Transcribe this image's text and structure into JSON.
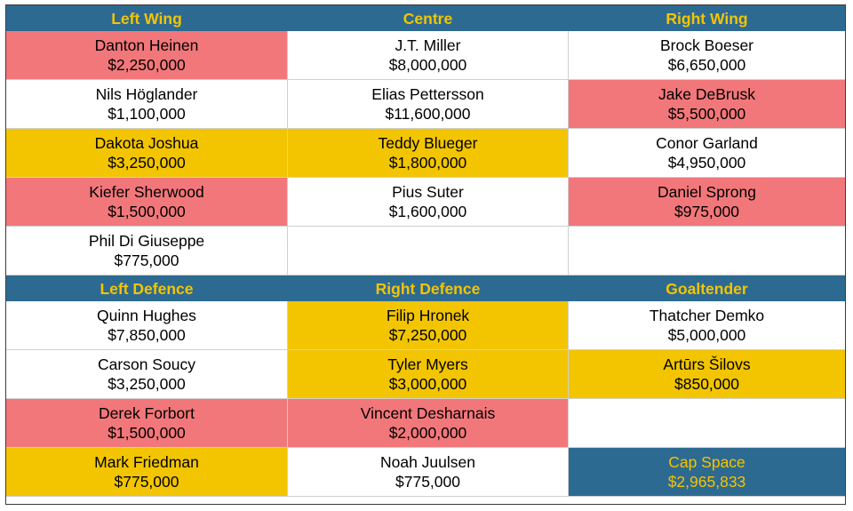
{
  "colors": {
    "header_bg": "#2d6a91",
    "header_text": "#f5c400",
    "red": "#f2777a",
    "yellow": "#f2c500",
    "white": "#ffffff"
  },
  "headers_top": [
    "Left Wing",
    "Centre",
    "Right Wing"
  ],
  "headers_bottom": [
    "Left Defence",
    "Right Defence",
    "Goaltender"
  ],
  "forwards": [
    [
      {
        "name": "Danton Heinen",
        "salary": "$2,250,000"
      },
      {
        "name": "J.T. Miller",
        "salary": "$8,000,000"
      },
      {
        "name": "Brock Boeser",
        "salary": "$6,650,000"
      }
    ],
    [
      {
        "name": "Nils Höglander",
        "salary": "$1,100,000"
      },
      {
        "name": "Elias Pettersson",
        "salary": "$11,600,000"
      },
      {
        "name": "Jake DeBrusk",
        "salary": "$5,500,000"
      }
    ],
    [
      {
        "name": "Dakota Joshua",
        "salary": "$3,250,000"
      },
      {
        "name": "Teddy Blueger",
        "salary": "$1,800,000"
      },
      {
        "name": "Conor Garland",
        "salary": "$4,950,000"
      }
    ],
    [
      {
        "name": "Kiefer Sherwood",
        "salary": "$1,500,000"
      },
      {
        "name": "Pius Suter",
        "salary": "$1,600,000"
      },
      {
        "name": "Daniel Sprong",
        "salary": "$975,000"
      }
    ],
    [
      {
        "name": "Phil Di Giuseppe",
        "salary": "$775,000"
      },
      {
        "name": "",
        "salary": ""
      },
      {
        "name": "",
        "salary": ""
      }
    ]
  ],
  "defence": [
    [
      {
        "name": "Quinn Hughes",
        "salary": "$7,850,000"
      },
      {
        "name": "Filip Hronek",
        "salary": "$7,250,000"
      },
      {
        "name": "Thatcher Demko",
        "salary": "$5,000,000"
      }
    ],
    [
      {
        "name": "Carson Soucy",
        "salary": "$3,250,000"
      },
      {
        "name": "Tyler Myers",
        "salary": "$3,000,000"
      },
      {
        "name": "Artūrs Šilovs",
        "salary": "$850,000"
      }
    ],
    [
      {
        "name": "Derek Forbort",
        "salary": "$1,500,000"
      },
      {
        "name": "Vincent Desharnais",
        "salary": "$2,000,000"
      },
      {
        "name": "",
        "salary": ""
      }
    ],
    [
      {
        "name": "Mark Friedman",
        "salary": "$775,000"
      },
      {
        "name": "Noah Juulsen",
        "salary": "$775,000"
      },
      {
        "name": "Cap Space",
        "salary": "$2,965,833"
      }
    ]
  ]
}
